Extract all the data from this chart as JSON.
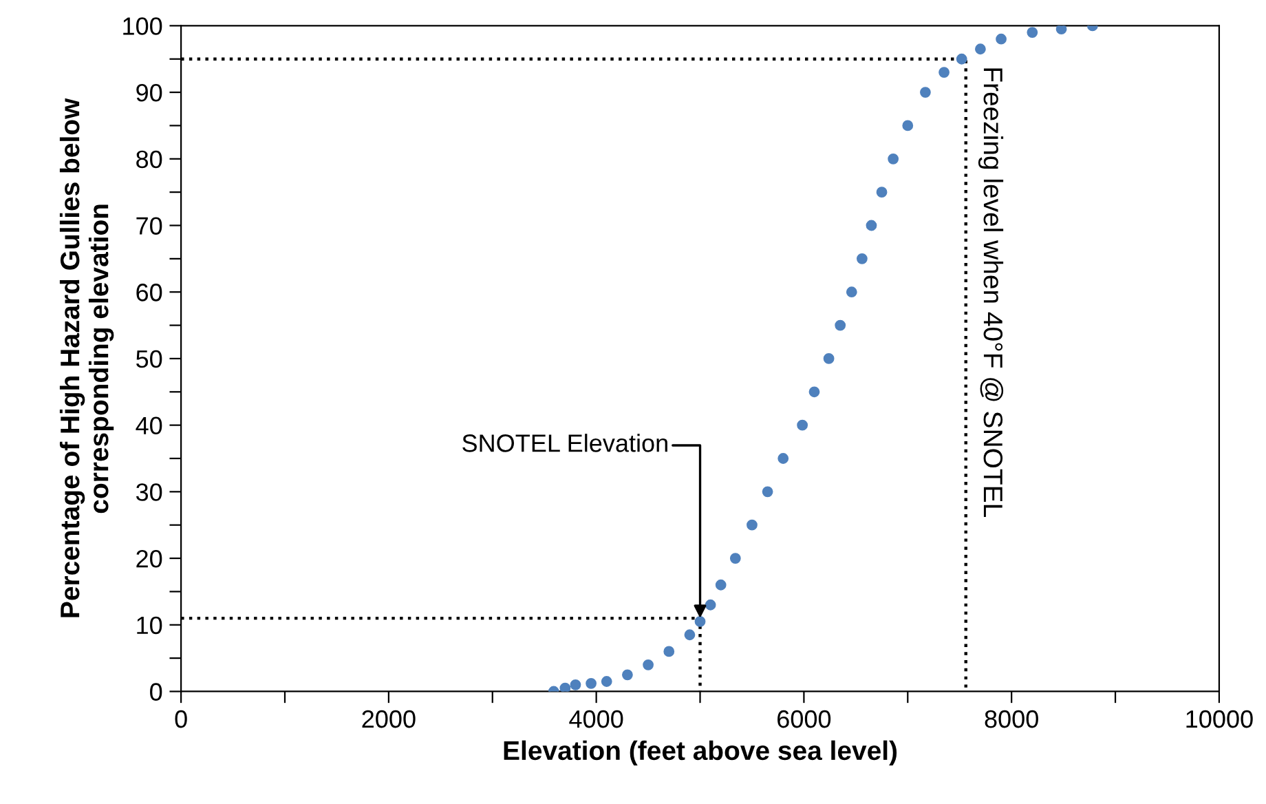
{
  "chart_data": {
    "type": "scatter",
    "xlabel": "Elevation (feet above sea level)",
    "ylabel": "Percentage of High Hazard Gullies below\ncorresponding elevation",
    "xlim": [
      0,
      10000
    ],
    "ylim": [
      0,
      100
    ],
    "xticks": [
      0,
      {
        "value": 1000,
        "label": null
      },
      2000,
      {
        "value": 3000,
        "label": null
      },
      4000,
      {
        "value": 5000,
        "label": null
      },
      6000,
      {
        "value": 7000,
        "label": null
      },
      8000,
      {
        "value": 9000,
        "label": null
      },
      10000
    ],
    "yticks": [
      0,
      {
        "value": 5,
        "label": null
      },
      10,
      {
        "value": 15,
        "label": null
      },
      20,
      {
        "value": 25,
        "label": null
      },
      30,
      {
        "value": 35,
        "label": null
      },
      40,
      {
        "value": 45,
        "label": null
      },
      50,
      {
        "value": 55,
        "label": null
      },
      60,
      {
        "value": 65,
        "label": null
      },
      70,
      {
        "value": 75,
        "label": null
      },
      80,
      {
        "value": 85,
        "label": null
      },
      90,
      {
        "value": 95,
        "label": null
      },
      100
    ],
    "grid": false,
    "marker": "circle",
    "series": [
      {
        "color": "#4f81bd",
        "x": [
          3590,
          3700,
          3800,
          3950,
          4100,
          4300,
          4500,
          4700,
          4900,
          5000,
          5100,
          5200,
          5340,
          5500,
          5650,
          5800,
          5985,
          6100,
          6240,
          6350,
          6460,
          6560,
          6650,
          6750,
          6860,
          7000,
          7170,
          7350,
          7520,
          7700,
          7900,
          8200,
          8480,
          8780
        ],
        "values": [
          0,
          0.5,
          1,
          1.2,
          1.5,
          2.5,
          4,
          6,
          8.5,
          10.5,
          13,
          16,
          20,
          25,
          30,
          35,
          40,
          45,
          50,
          55,
          60,
          65,
          70,
          75,
          80,
          85,
          90,
          93,
          95,
          96.5,
          98,
          99,
          99.5,
          100
        ]
      },
      {
        "type": "line",
        "color": "#000000",
        "line_style": "dotted",
        "marker": "none",
        "x": [
          0,
          5000,
          5000
        ],
        "values": [
          11,
          11,
          0
        ]
      },
      {
        "type": "line",
        "color": "#000000",
        "line_style": "dotted",
        "marker": "none",
        "x": [
          0,
          7560,
          7560
        ],
        "values": [
          95,
          95,
          0
        ]
      }
    ],
    "annotations": [
      {
        "text": "SNOTEL Elevation",
        "x": 5000,
        "y": 11
      },
      {
        "text": "Freezing level when 40°F @ SNOTEL",
        "x": 7560,
        "y": 60
      }
    ]
  }
}
